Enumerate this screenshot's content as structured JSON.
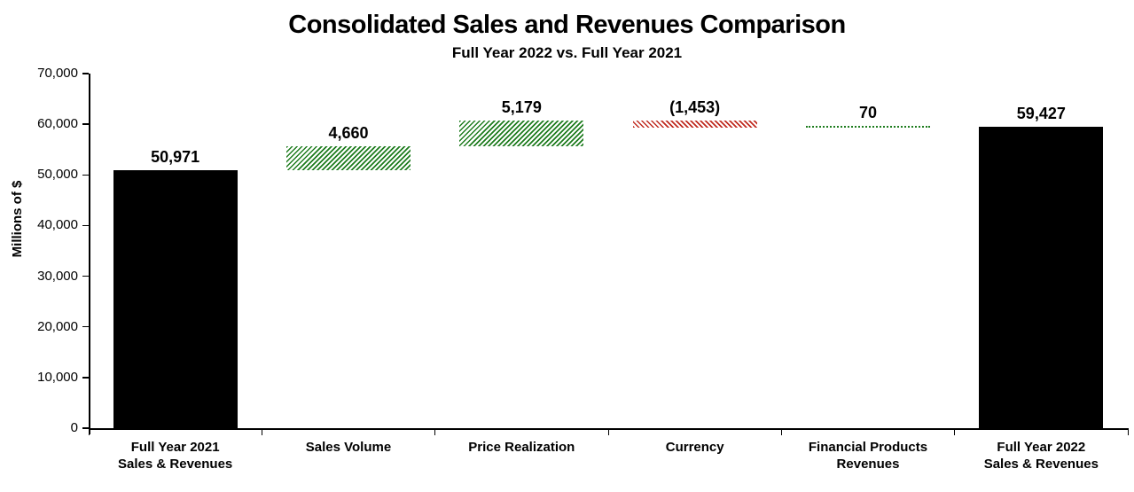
{
  "title": "Consolidated Sales and Revenues Comparison",
  "subtitle": "Full Year 2022 vs. Full Year 2021",
  "y_axis": {
    "label": "Millions of $",
    "ticks": [
      "0",
      "10,000",
      "20,000",
      "30,000",
      "40,000",
      "50,000",
      "60,000",
      "70,000"
    ],
    "min": 0,
    "max": 70000,
    "step": 10000
  },
  "colors": {
    "total": "#000000",
    "increase": "#1e7c1e",
    "decrease": "#c02b20",
    "axis": "#000000",
    "background": "#ffffff"
  },
  "chart_data": {
    "type": "bar",
    "subtype": "waterfall",
    "title": "Consolidated Sales and Revenues Comparison",
    "subtitle": "Full Year 2022 vs. Full Year 2021",
    "xlabel": "",
    "ylabel": "Millions of $",
    "ylim": [
      0,
      70000
    ],
    "grid": false,
    "legend": false,
    "categories": [
      "Full Year 2021 Sales & Revenues",
      "Sales Volume",
      "Price Realization",
      "Currency",
      "Financial Products Revenues",
      "Full Year 2022 Sales & Revenues"
    ],
    "bars": [
      {
        "category_lines": [
          "Full Year 2021",
          "Sales & Revenues"
        ],
        "label": "50,971",
        "base": 0,
        "value": 50971,
        "style": "total"
      },
      {
        "category_lines": [
          "Sales Volume"
        ],
        "label": "4,660",
        "base": 50971,
        "value": 4660,
        "style": "increase"
      },
      {
        "category_lines": [
          "Price Realization"
        ],
        "label": "5,179",
        "base": 55631,
        "value": 5179,
        "style": "increase"
      },
      {
        "category_lines": [
          "Currency"
        ],
        "label": "(1,453)",
        "base": 60810,
        "value": -1453,
        "style": "decrease"
      },
      {
        "category_lines": [
          "Financial Products",
          "Revenues"
        ],
        "label": "70",
        "base": 59357,
        "value": 70,
        "style": "small-increase"
      },
      {
        "category_lines": [
          "Full Year 2022",
          "Sales & Revenues"
        ],
        "label": "59,427",
        "base": 0,
        "value": 59427,
        "style": "total"
      }
    ]
  }
}
